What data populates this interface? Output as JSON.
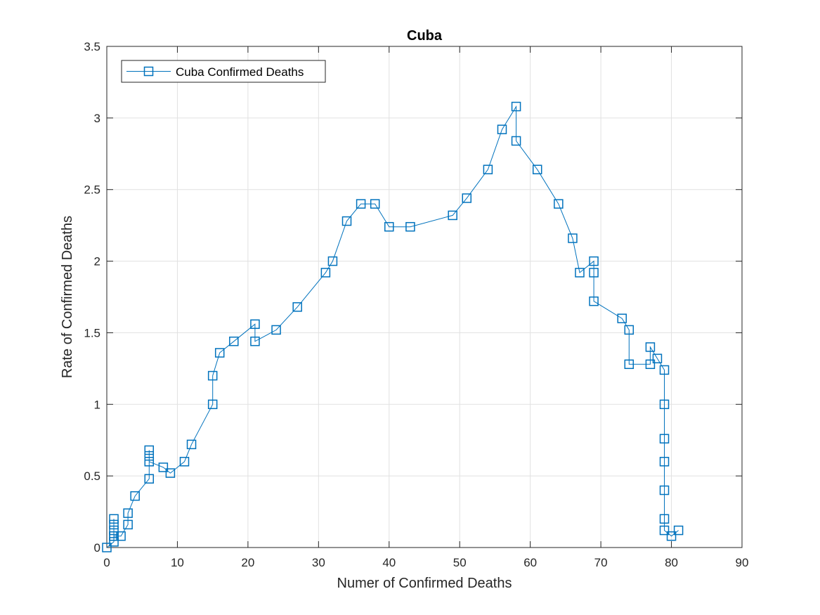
{
  "chart_data": {
    "type": "line",
    "title": "Cuba",
    "xlabel": "Numer of Confirmed Deaths",
    "ylabel": "Rate of Confirmed Deaths",
    "xlim": [
      0,
      90
    ],
    "ylim": [
      0,
      3.5
    ],
    "xticks": [
      0,
      10,
      20,
      30,
      40,
      50,
      60,
      70,
      80,
      90
    ],
    "yticks": [
      0,
      0.5,
      1,
      1.5,
      2,
      2.5,
      3,
      3.5
    ],
    "xtick_labels": [
      "0",
      "10",
      "20",
      "30",
      "40",
      "50",
      "60",
      "70",
      "80",
      "90"
    ],
    "ytick_labels": [
      "0",
      "0.5",
      "1",
      "1.5",
      "2",
      "2.5",
      "3",
      "3.5"
    ],
    "grid": true,
    "legend_position": "top-left",
    "series": [
      {
        "name": "Cuba Confirmed Deaths",
        "color": "#0072BD",
        "marker": "square",
        "x": [
          0,
          1,
          1,
          1,
          1,
          1,
          1,
          2,
          3,
          3,
          4,
          6,
          6,
          6,
          6,
          6,
          8,
          9,
          11,
          12,
          15,
          15,
          16,
          18,
          21,
          21,
          24,
          27,
          31,
          32,
          34,
          36,
          38,
          40,
          43,
          49,
          51,
          54,
          56,
          58,
          58,
          61,
          64,
          66,
          67,
          69,
          69,
          69,
          73,
          74,
          74,
          77,
          77,
          78,
          79,
          79,
          79,
          79,
          79,
          79,
          79,
          80,
          81
        ],
        "y": [
          0,
          0.04,
          0.08,
          0.12,
          0.16,
          0.2,
          0.08,
          0.08,
          0.16,
          0.24,
          0.36,
          0.48,
          0.6,
          0.64,
          0.68,
          0.6,
          0.56,
          0.52,
          0.6,
          0.72,
          1.0,
          1.2,
          1.36,
          1.44,
          1.56,
          1.44,
          1.52,
          1.68,
          1.92,
          2.0,
          2.28,
          2.4,
          2.4,
          2.24,
          2.24,
          2.32,
          2.44,
          2.64,
          2.92,
          3.08,
          2.84,
          2.64,
          2.4,
          2.16,
          1.92,
          2.0,
          1.92,
          1.72,
          1.6,
          1.52,
          1.28,
          1.28,
          1.4,
          1.32,
          1.24,
          1.0,
          0.76,
          0.6,
          0.4,
          0.2,
          0.12,
          0.08,
          0.12
        ]
      }
    ]
  }
}
